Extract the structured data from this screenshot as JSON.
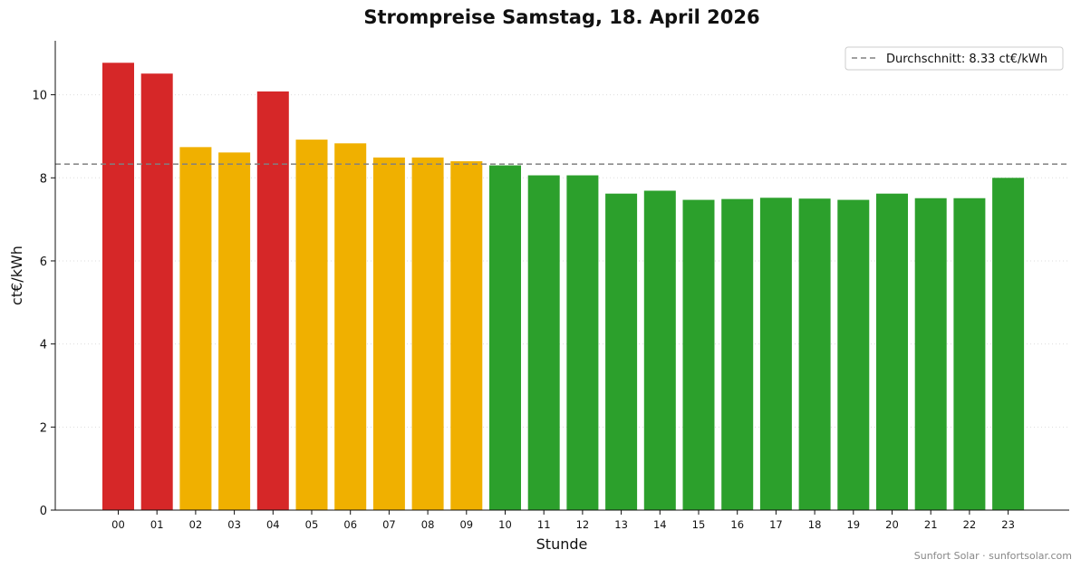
{
  "chart_data": {
    "type": "bar",
    "title": "Strompreise Samstag, 18. April 2026",
    "xlabel": "Stunde",
    "ylabel": "ct€/kWh",
    "ylim": [
      0,
      11.3
    ],
    "yticks": [
      0,
      2,
      4,
      6,
      8,
      10
    ],
    "grid": "horizontal dotted",
    "legend_position": "top-right",
    "categories": [
      "00",
      "01",
      "02",
      "03",
      "04",
      "05",
      "06",
      "07",
      "08",
      "09",
      "10",
      "11",
      "12",
      "13",
      "14",
      "15",
      "16",
      "17",
      "18",
      "19",
      "20",
      "21",
      "22",
      "23"
    ],
    "values": [
      10.77,
      10.51,
      8.74,
      8.61,
      10.08,
      8.92,
      8.83,
      8.49,
      8.49,
      8.4,
      8.3,
      8.06,
      8.06,
      7.62,
      7.69,
      7.47,
      7.49,
      7.52,
      7.5,
      7.47,
      7.62,
      7.51,
      7.51,
      8.0
    ],
    "bar_levels": [
      "high",
      "high",
      "mid",
      "mid",
      "high",
      "mid",
      "mid",
      "mid",
      "mid",
      "mid",
      "low",
      "low",
      "low",
      "low",
      "low",
      "low",
      "low",
      "low",
      "low",
      "low",
      "low",
      "low",
      "low",
      "low"
    ],
    "colors": {
      "high": "#d62728",
      "mid": "#f0b000",
      "low": "#2ca02c",
      "average_line": "#808080"
    },
    "average": {
      "value": 8.33,
      "label": "Durchschnitt: 8.33 ct€/kWh"
    }
  },
  "footer": {
    "credit": "Sunfort Solar · sunfortsolar.com"
  }
}
